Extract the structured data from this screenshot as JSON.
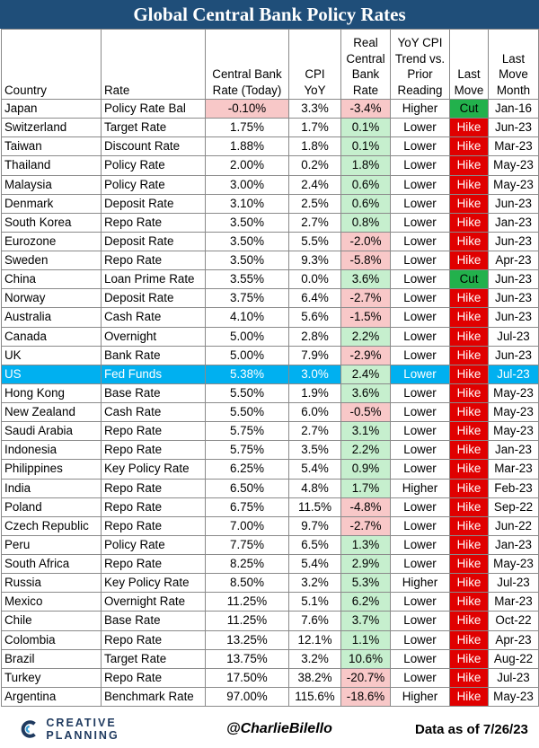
{
  "title": "Global Central Bank Policy Rates",
  "headers": {
    "country": "Country",
    "rate": "Rate",
    "cb_rate": [
      "Central Bank",
      "Rate (Today)"
    ],
    "cpi": [
      "CPI",
      "YoY"
    ],
    "real_rate": [
      "Real",
      "Central",
      "Bank",
      "Rate"
    ],
    "trend": [
      "YoY CPI",
      "Trend vs.",
      "Prior",
      "Reading"
    ],
    "last_move": [
      "Last",
      "Move"
    ],
    "last_month": [
      "Last",
      "Move",
      "Month"
    ]
  },
  "colors": {
    "title_bar": "#1f4e79",
    "negative_real_rate": "#f8c8c8",
    "positive_real_rate": "#c6efce",
    "hike": "#e00000",
    "cut": "#22b14c",
    "highlight_row": "#00b0f0"
  },
  "highlight_country": "US",
  "chart_data": {
    "type": "table",
    "title": "Global Central Bank Policy Rates",
    "columns": [
      "Country",
      "Rate",
      "Central Bank Rate (Today)",
      "CPI YoY",
      "Real Central Bank Rate",
      "YoY CPI Trend vs. Prior Reading",
      "Last Move",
      "Last Move Month"
    ],
    "rows": [
      {
        "country": "Japan",
        "rate": "Policy Rate Bal",
        "cb_rate": "-0.10%",
        "cpi": "3.3%",
        "real_rate": "-3.4%",
        "trend": "Higher",
        "last_move": "Cut",
        "month": "Jan-16"
      },
      {
        "country": "Switzerland",
        "rate": "Target Rate",
        "cb_rate": "1.75%",
        "cpi": "1.7%",
        "real_rate": "0.1%",
        "trend": "Lower",
        "last_move": "Hike",
        "month": "Jun-23"
      },
      {
        "country": "Taiwan",
        "rate": "Discount Rate",
        "cb_rate": "1.88%",
        "cpi": "1.8%",
        "real_rate": "0.1%",
        "trend": "Lower",
        "last_move": "Hike",
        "month": "Mar-23"
      },
      {
        "country": "Thailand",
        "rate": "Policy Rate",
        "cb_rate": "2.00%",
        "cpi": "0.2%",
        "real_rate": "1.8%",
        "trend": "Lower",
        "last_move": "Hike",
        "month": "May-23"
      },
      {
        "country": "Malaysia",
        "rate": "Policy Rate",
        "cb_rate": "3.00%",
        "cpi": "2.4%",
        "real_rate": "0.6%",
        "trend": "Lower",
        "last_move": "Hike",
        "month": "May-23"
      },
      {
        "country": "Denmark",
        "rate": "Deposit Rate",
        "cb_rate": "3.10%",
        "cpi": "2.5%",
        "real_rate": "0.6%",
        "trend": "Lower",
        "last_move": "Hike",
        "month": "Jun-23"
      },
      {
        "country": "South Korea",
        "rate": "Repo Rate",
        "cb_rate": "3.50%",
        "cpi": "2.7%",
        "real_rate": "0.8%",
        "trend": "Lower",
        "last_move": "Hike",
        "month": "Jan-23"
      },
      {
        "country": "Eurozone",
        "rate": "Deposit Rate",
        "cb_rate": "3.50%",
        "cpi": "5.5%",
        "real_rate": "-2.0%",
        "trend": "Lower",
        "last_move": "Hike",
        "month": "Jun-23"
      },
      {
        "country": "Sweden",
        "rate": "Repo Rate",
        "cb_rate": "3.50%",
        "cpi": "9.3%",
        "real_rate": "-5.8%",
        "trend": "Lower",
        "last_move": "Hike",
        "month": "Apr-23"
      },
      {
        "country": "China",
        "rate": "Loan Prime Rate",
        "cb_rate": "3.55%",
        "cpi": "0.0%",
        "real_rate": "3.6%",
        "trend": "Lower",
        "last_move": "Cut",
        "month": "Jun-23"
      },
      {
        "country": "Norway",
        "rate": "Deposit Rate",
        "cb_rate": "3.75%",
        "cpi": "6.4%",
        "real_rate": "-2.7%",
        "trend": "Lower",
        "last_move": "Hike",
        "month": "Jun-23"
      },
      {
        "country": "Australia",
        "rate": "Cash Rate",
        "cb_rate": "4.10%",
        "cpi": "5.6%",
        "real_rate": "-1.5%",
        "trend": "Lower",
        "last_move": "Hike",
        "month": "Jun-23"
      },
      {
        "country": "Canada",
        "rate": "Overnight",
        "cb_rate": "5.00%",
        "cpi": "2.8%",
        "real_rate": "2.2%",
        "trend": "Lower",
        "last_move": "Hike",
        "month": "Jul-23"
      },
      {
        "country": "UK",
        "rate": "Bank Rate",
        "cb_rate": "5.00%",
        "cpi": "7.9%",
        "real_rate": "-2.9%",
        "trend": "Lower",
        "last_move": "Hike",
        "month": "Jun-23"
      },
      {
        "country": "US",
        "rate": "Fed Funds",
        "cb_rate": "5.38%",
        "cpi": "3.0%",
        "real_rate": "2.4%",
        "trend": "Lower",
        "last_move": "Hike",
        "month": "Jul-23"
      },
      {
        "country": "Hong Kong",
        "rate": "Base Rate",
        "cb_rate": "5.50%",
        "cpi": "1.9%",
        "real_rate": "3.6%",
        "trend": "Lower",
        "last_move": "Hike",
        "month": "May-23"
      },
      {
        "country": "New Zealand",
        "rate": "Cash Rate",
        "cb_rate": "5.50%",
        "cpi": "6.0%",
        "real_rate": "-0.5%",
        "trend": "Lower",
        "last_move": "Hike",
        "month": "May-23"
      },
      {
        "country": "Saudi Arabia",
        "rate": "Repo Rate",
        "cb_rate": "5.75%",
        "cpi": "2.7%",
        "real_rate": "3.1%",
        "trend": "Lower",
        "last_move": "Hike",
        "month": "May-23"
      },
      {
        "country": "Indonesia",
        "rate": "Repo Rate",
        "cb_rate": "5.75%",
        "cpi": "3.5%",
        "real_rate": "2.2%",
        "trend": "Lower",
        "last_move": "Hike",
        "month": "Jan-23"
      },
      {
        "country": "Philippines",
        "rate": "Key Policy Rate",
        "cb_rate": "6.25%",
        "cpi": "5.4%",
        "real_rate": "0.9%",
        "trend": "Lower",
        "last_move": "Hike",
        "month": "Mar-23"
      },
      {
        "country": "India",
        "rate": "Repo Rate",
        "cb_rate": "6.50%",
        "cpi": "4.8%",
        "real_rate": "1.7%",
        "trend": "Higher",
        "last_move": "Hike",
        "month": "Feb-23"
      },
      {
        "country": "Poland",
        "rate": "Repo Rate",
        "cb_rate": "6.75%",
        "cpi": "11.5%",
        "real_rate": "-4.8%",
        "trend": "Lower",
        "last_move": "Hike",
        "month": "Sep-22"
      },
      {
        "country": "Czech Republic",
        "rate": "Repo Rate",
        "cb_rate": "7.00%",
        "cpi": "9.7%",
        "real_rate": "-2.7%",
        "trend": "Lower",
        "last_move": "Hike",
        "month": "Jun-22"
      },
      {
        "country": "Peru",
        "rate": "Policy Rate",
        "cb_rate": "7.75%",
        "cpi": "6.5%",
        "real_rate": "1.3%",
        "trend": "Lower",
        "last_move": "Hike",
        "month": "Jan-23"
      },
      {
        "country": "South Africa",
        "rate": "Repo Rate",
        "cb_rate": "8.25%",
        "cpi": "5.4%",
        "real_rate": "2.9%",
        "trend": "Lower",
        "last_move": "Hike",
        "month": "May-23"
      },
      {
        "country": "Russia",
        "rate": "Key Policy Rate",
        "cb_rate": "8.50%",
        "cpi": "3.2%",
        "real_rate": "5.3%",
        "trend": "Higher",
        "last_move": "Hike",
        "month": "Jul-23"
      },
      {
        "country": "Mexico",
        "rate": "Overnight Rate",
        "cb_rate": "11.25%",
        "cpi": "5.1%",
        "real_rate": "6.2%",
        "trend": "Lower",
        "last_move": "Hike",
        "month": "Mar-23"
      },
      {
        "country": "Chile",
        "rate": "Base Rate",
        "cb_rate": "11.25%",
        "cpi": "7.6%",
        "real_rate": "3.7%",
        "trend": "Lower",
        "last_move": "Hike",
        "month": "Oct-22"
      },
      {
        "country": "Colombia",
        "rate": "Repo Rate",
        "cb_rate": "13.25%",
        "cpi": "12.1%",
        "real_rate": "1.1%",
        "trend": "Lower",
        "last_move": "Hike",
        "month": "Apr-23"
      },
      {
        "country": "Brazil",
        "rate": "Target Rate",
        "cb_rate": "13.75%",
        "cpi": "3.2%",
        "real_rate": "10.6%",
        "trend": "Lower",
        "last_move": "Hike",
        "month": "Aug-22"
      },
      {
        "country": "Turkey",
        "rate": "Repo Rate",
        "cb_rate": "17.50%",
        "cpi": "38.2%",
        "real_rate": "-20.7%",
        "trend": "Lower",
        "last_move": "Hike",
        "month": "Jul-23"
      },
      {
        "country": "Argentina",
        "rate": "Benchmark Rate",
        "cb_rate": "97.00%",
        "cpi": "115.6%",
        "real_rate": "-18.6%",
        "trend": "Higher",
        "last_move": "Hike",
        "month": "May-23"
      }
    ]
  },
  "footer": {
    "brand": "CREATIVE PLANNING",
    "handle": "@CharlieBilello",
    "as_of": "Data as of 7/26/23"
  }
}
